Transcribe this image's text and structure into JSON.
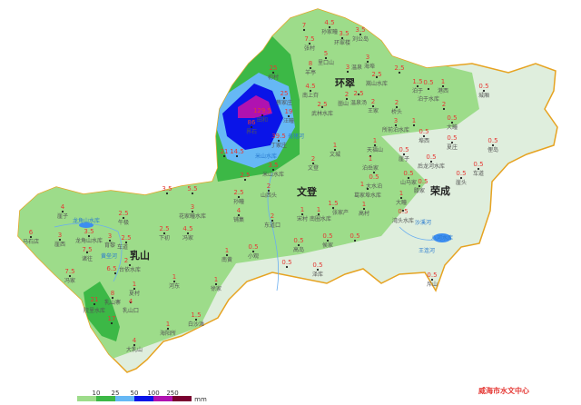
{
  "map": {
    "cities": [
      "环翠",
      "文登",
      "乳山",
      "荣成"
    ],
    "waters": [
      "龙角山水库",
      "米山水库",
      "八河水库",
      "沙溪河",
      "王连河",
      "黄垒河",
      "母猪河"
    ],
    "stations": [
      {
        "name": "初村",
        "value": "25"
      },
      {
        "name": "蔡家庄",
        "value": "25"
      },
      {
        "name": "汪疃",
        "value": "19"
      },
      {
        "name": "田和",
        "value": "129.5"
      },
      {
        "name": "界石",
        "value": "86"
      },
      {
        "name": "丁家庄",
        "value": "39.5"
      },
      {
        "name": "",
        "value": "21"
      },
      {
        "name": "",
        "value": "14.5"
      },
      {
        "name": "米山水库",
        "value": "3.5"
      },
      {
        "name": "",
        "value": "2.5"
      },
      {
        "name": "山西头",
        "value": "2"
      },
      {
        "name": "孙疃",
        "value": "2.5"
      },
      {
        "name": "铺集",
        "value": "4"
      },
      {
        "name": "东道口",
        "value": "2"
      },
      {
        "name": "文城",
        "value": "1"
      },
      {
        "name": "文登",
        "value": "2"
      },
      {
        "name": "宋村",
        "value": "1"
      },
      {
        "name": "南圈水库",
        "value": "1"
      },
      {
        "name": "张家产",
        "value": "1.5"
      },
      {
        "name": "侯家",
        "value": "0.5"
      },
      {
        "name": "",
        "value": "0.5"
      },
      {
        "name": "高岛",
        "value": "0.5"
      },
      {
        "name": "小观",
        "value": "0.5"
      },
      {
        "name": "南黄",
        "value": "1"
      },
      {
        "name": "",
        "value": "0.5"
      },
      {
        "name": "泽库",
        "value": "0.5"
      },
      {
        "name": "徐家",
        "value": "1"
      },
      {
        "name": "天福山",
        "value": "1"
      },
      {
        "name": "泊岳家",
        "value": "1"
      },
      {
        "name": "大水泊",
        "value": "0.5"
      },
      {
        "name": "葛家埠水库",
        "value": "1"
      },
      {
        "name": "高村",
        "value": "1"
      },
      {
        "name": "孙家疃",
        "value": "4.5"
      },
      {
        "name": "张村",
        "value": "7.5"
      },
      {
        "name": "",
        "value": "7"
      },
      {
        "name": "环翠楼",
        "value": "3.5"
      },
      {
        "name": "刘公岛",
        "value": "3.5"
      },
      {
        "name": "里口山",
        "value": "5"
      },
      {
        "name": "羊亭",
        "value": "8"
      },
      {
        "name": "温泉",
        "value": "3"
      },
      {
        "name": "海埠",
        "value": "3"
      },
      {
        "name": "嵩山水库",
        "value": "2.5"
      },
      {
        "name": "",
        "value": "2.5"
      },
      {
        "name": "南上夼",
        "value": "4.5"
      },
      {
        "name": "温泉汤",
        "value": "2.5"
      },
      {
        "name": "崮山",
        "value": "2"
      },
      {
        "name": "王家",
        "value": "2"
      },
      {
        "name": "武林水库",
        "value": "2.5"
      },
      {
        "name": "桥头",
        "value": "2"
      },
      {
        "name": "泊于",
        "value": "1.5"
      },
      {
        "name": "泊于水库",
        "value": "0.5"
      },
      {
        "name": "港西",
        "value": "1"
      },
      {
        "name": "",
        "value": "2"
      },
      {
        "name": "所前泊水库",
        "value": "3"
      },
      {
        "name": "",
        "value": "1"
      },
      {
        "name": "城厢",
        "value": "0.5"
      },
      {
        "name": "大疃",
        "value": "0.5"
      },
      {
        "name": "埠西",
        "value": "0.5"
      },
      {
        "name": "夏庄",
        "value": "0.5"
      },
      {
        "name": "俚岛",
        "value": "0.5"
      },
      {
        "name": "崖子",
        "value": "0.5"
      },
      {
        "name": "后龙河水库",
        "value": "0.5"
      },
      {
        "name": "车道",
        "value": "0.5"
      },
      {
        "name": "崖头",
        "value": "0.5"
      },
      {
        "name": "山马家",
        "value": "0.5"
      },
      {
        "name": "滕家",
        "value": "0.5"
      },
      {
        "name": "大疃",
        "value": "1"
      },
      {
        "name": "湾头水库",
        "value": "0.5"
      },
      {
        "name": "斥山",
        "value": "0.5"
      },
      {
        "name": "崖子",
        "value": "4"
      },
      {
        "name": "午极",
        "value": "2.5"
      },
      {
        "name": "马石店",
        "value": "6"
      },
      {
        "name": "龙角山水库",
        "value": "3.5"
      },
      {
        "name": "崖西",
        "value": "3"
      },
      {
        "name": "育黎",
        "value": "3"
      },
      {
        "name": "车道",
        "value": "2.5"
      },
      {
        "name": "诸往",
        "value": "7.5"
      },
      {
        "name": "台依水库",
        "value": "2"
      },
      {
        "name": "",
        "value": "6.5"
      },
      {
        "name": "冯家",
        "value": "7.5"
      },
      {
        "name": "河东",
        "value": "1"
      },
      {
        "name": "夏村",
        "value": "1"
      },
      {
        "name": "乳山寨",
        "value": "8"
      },
      {
        "name": "院里水库",
        "value": "21"
      },
      {
        "name": "乳山口",
        "value": "4"
      },
      {
        "name": "",
        "value": "17"
      },
      {
        "name": "白沙滩",
        "value": "1.5"
      },
      {
        "name": "海阳所",
        "value": "1"
      },
      {
        "name": "大乳山",
        "value": "4"
      },
      {
        "name": "",
        "value": "3.5"
      },
      {
        "name": "",
        "value": "5.5"
      },
      {
        "name": "花家疃水库",
        "value": "3"
      },
      {
        "name": "下初",
        "value": "2.5"
      },
      {
        "name": "冯家",
        "value": "4.5"
      }
    ]
  },
  "legend": {
    "ticks": [
      "10",
      "25",
      "50",
      "100",
      "250"
    ],
    "unit": "mm",
    "colors": [
      "#9ddc8a",
      "#3cb846",
      "#66b8f5",
      "#0a14e8",
      "#b012b0",
      "#7a0030"
    ]
  },
  "footer": "威海市水文中心"
}
